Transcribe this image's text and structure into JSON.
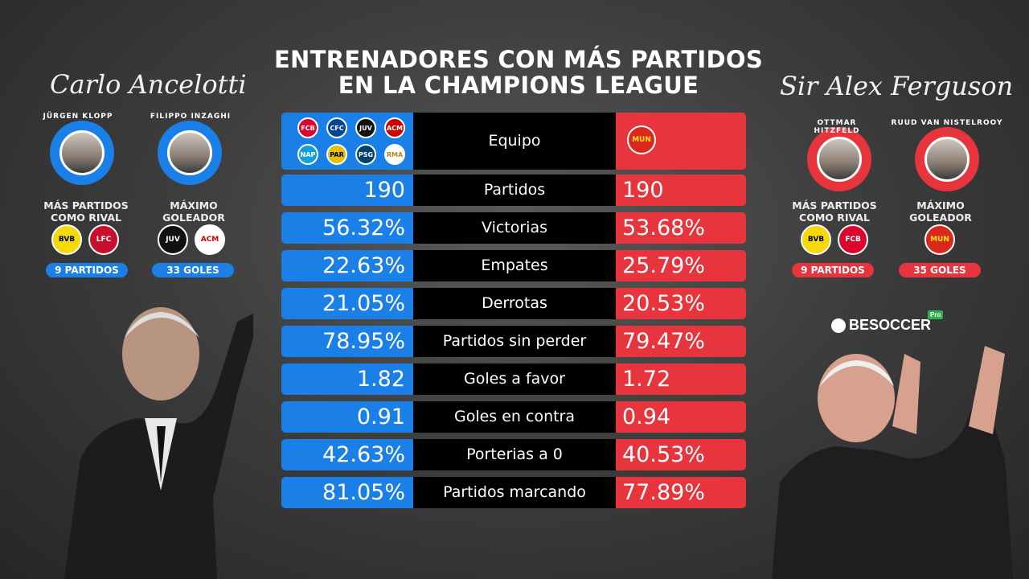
{
  "title": {
    "line1": "ENTRENADORES CON MÁS PARTIDOS",
    "line2": "EN LA CHAMPIONS LEAGUE"
  },
  "left_coach": {
    "signature": "Carlo Ancelotti",
    "rival": {
      "name": "JÜRGEN KLOPP",
      "label_line1": "MÁS PARTIDOS",
      "label_line2": "COMO RIVAL",
      "badge": "9 PARTIDOS",
      "logos": [
        "BVB",
        "LFC"
      ]
    },
    "scorer": {
      "name": "FILIPPO INZAGHI",
      "label_line1": "MÁXIMO",
      "label_line2": "GOLEADOR",
      "badge": "33 GOLES",
      "logos": [
        "JUV",
        "ACM"
      ]
    }
  },
  "right_coach": {
    "signature": "Sir Alex Ferguson",
    "rival": {
      "name": "OTTMAR HITZFELD",
      "label_line1": "MÁS PARTIDOS",
      "label_line2": "COMO RIVAL",
      "badge": "9 PARTIDOS",
      "logos": [
        "BVB",
        "FCB"
      ]
    },
    "scorer": {
      "name": "RUUD VAN NISTELROOY",
      "label_line1": "MÁXIMO",
      "label_line2": "GOLEADOR",
      "badge": "35 GOLES",
      "logos": [
        "MUN"
      ]
    }
  },
  "brand": "BESOCCER",
  "brand_tag": "Pro",
  "colors": {
    "left": "#1a7fe6",
    "right": "#e8343c",
    "middle": "#000000"
  },
  "table": {
    "header": {
      "label": "Equipo",
      "left_teams": [
        "FCB",
        "CFC",
        "JUV",
        "ACM",
        "NAP",
        "PAR",
        "PSG",
        "RMA"
      ],
      "right_teams": [
        "MUN"
      ]
    },
    "rows": [
      {
        "label": "Partidos",
        "left": "190",
        "right": "190"
      },
      {
        "label": "Victorias",
        "left": "56.32%",
        "right": "53.68%"
      },
      {
        "label": "Empates",
        "left": "22.63%",
        "right": "25.79%"
      },
      {
        "label": "Derrotas",
        "left": "21.05%",
        "right": "20.53%"
      },
      {
        "label": "Partidos sin perder",
        "left": "78.95%",
        "right": "79.47%"
      },
      {
        "label": "Goles a favor",
        "left": "1.82",
        "right": "1.72"
      },
      {
        "label": "Goles en contra",
        "left": "0.91",
        "right": "0.94"
      },
      {
        "label": "Porterias a 0",
        "left": "42.63%",
        "right": "40.53%"
      },
      {
        "label": "Partidos marcando",
        "left": "81.05%",
        "right": "77.89%"
      }
    ]
  }
}
